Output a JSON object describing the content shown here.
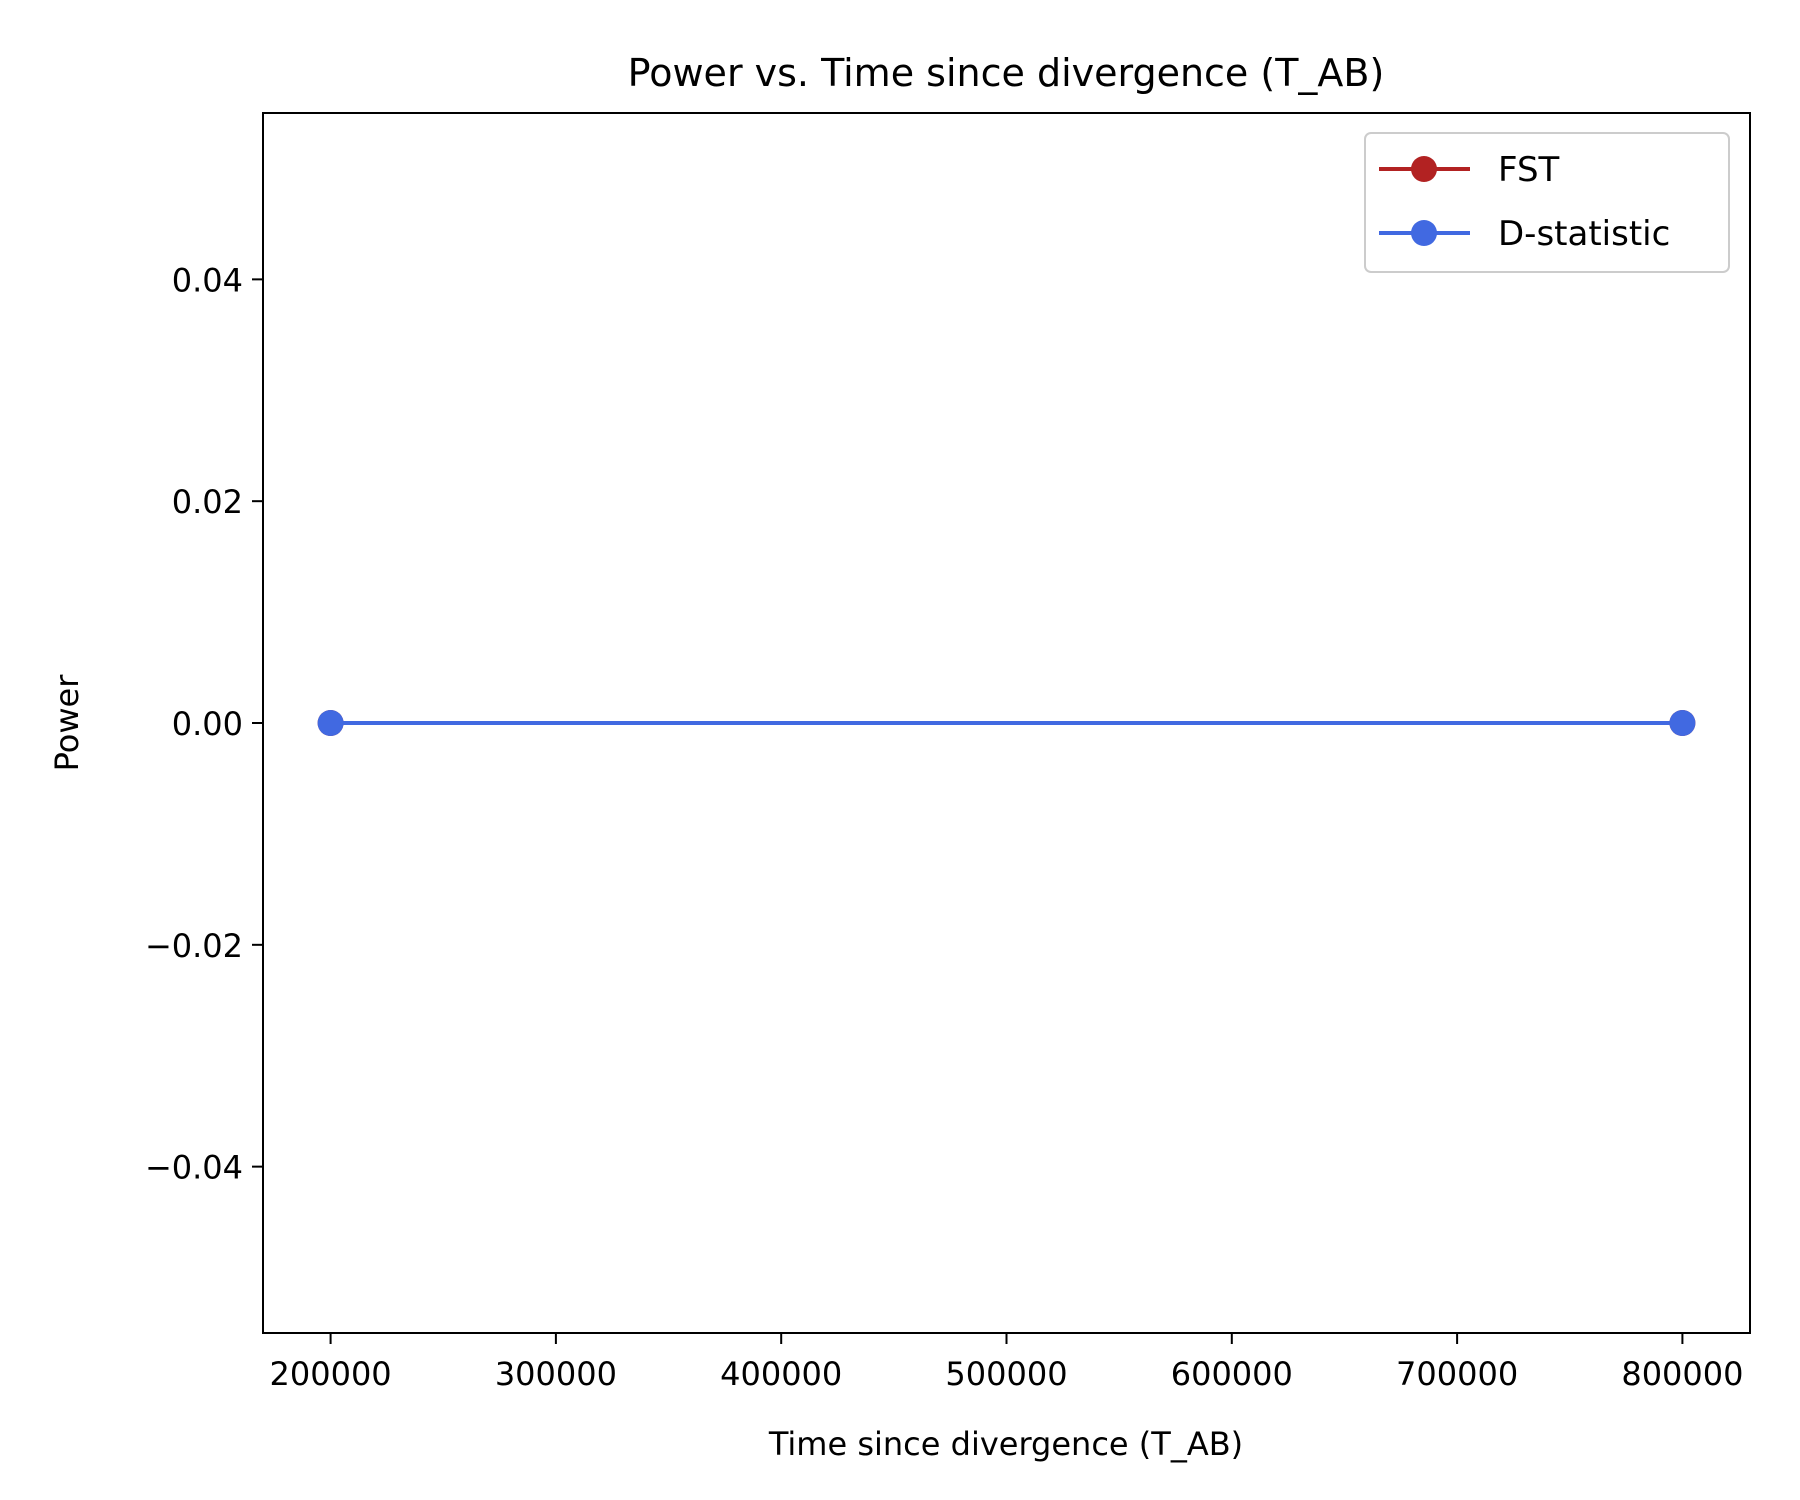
{
  "chart_data": {
    "type": "line",
    "title": "Power vs. Time since divergence (T_AB)",
    "xlabel": "Time since divergence (T_AB)",
    "ylabel": "Power",
    "xlim": [
      170000,
      830000
    ],
    "ylim": [
      -0.055,
      0.055
    ],
    "x_ticks": [
      200000,
      300000,
      400000,
      500000,
      600000,
      700000,
      800000
    ],
    "x_tick_labels": [
      "200000",
      "300000",
      "400000",
      "500000",
      "600000",
      "700000",
      "800000"
    ],
    "y_ticks": [
      -0.04,
      -0.02,
      0.0,
      0.02,
      0.04
    ],
    "y_tick_labels": [
      "−0.04",
      "−0.02",
      "0.00",
      "0.02",
      "0.04"
    ],
    "grid": false,
    "legend_position": "top-right",
    "x": [
      200000,
      800000
    ],
    "series": [
      {
        "name": "FST",
        "values": [
          0.0,
          0.0
        ],
        "color": "#b22222"
      },
      {
        "name": "D-statistic",
        "values": [
          0.0,
          0.0
        ],
        "color": "#4169e1"
      }
    ]
  }
}
